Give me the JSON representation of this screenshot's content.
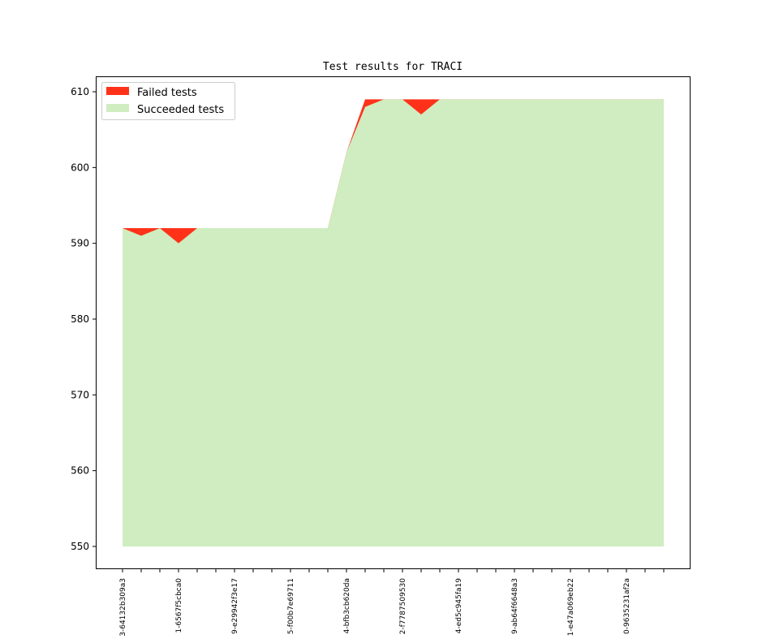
{
  "chart_data": {
    "type": "area",
    "title": "Test results for TRACI",
    "xlabel": "",
    "ylabel": "",
    "ylim": [
      547,
      611
    ],
    "yticks": [
      550,
      560,
      570,
      580,
      590,
      600,
      610
    ],
    "x_count": 30,
    "x_tick_labels": [
      {
        "index": 0,
        "label": "3-64132b309a3"
      },
      {
        "index": 3,
        "label": "1-6567f5cbca0"
      },
      {
        "index": 6,
        "label": "9-e29942f3e17"
      },
      {
        "index": 9,
        "label": "5-f00b7e69711"
      },
      {
        "index": 12,
        "label": "4-bfb3cb620da"
      },
      {
        "index": 15,
        "label": "2-f7787509530"
      },
      {
        "index": 18,
        "label": "4-ed5c945fa19"
      },
      {
        "index": 21,
        "label": "9-ab64f6648a3"
      },
      {
        "index": 24,
        "label": "1-e47a069eb22"
      },
      {
        "index": 27,
        "label": "0-9635231af2a"
      }
    ],
    "baseline": 550,
    "series": [
      {
        "name": "Failed tests",
        "color": "#ff3219",
        "values_total": [
          592,
          592,
          592,
          592,
          592,
          592,
          592,
          592,
          592,
          592,
          592,
          592,
          602,
          609,
          609,
          609,
          609,
          609,
          609,
          609,
          609,
          609,
          609,
          609,
          609,
          609,
          609,
          609,
          609,
          609
        ]
      },
      {
        "name": "Succeeded tests",
        "color": "#cfedc0",
        "values": [
          592,
          591,
          592,
          590,
          592,
          592,
          592,
          592,
          592,
          592,
          592,
          592,
          602,
          608,
          609,
          609,
          607,
          609,
          609,
          609,
          609,
          609,
          609,
          609,
          609,
          609,
          609,
          609,
          609,
          609
        ]
      }
    ],
    "legend": "top-left",
    "grid": false
  }
}
